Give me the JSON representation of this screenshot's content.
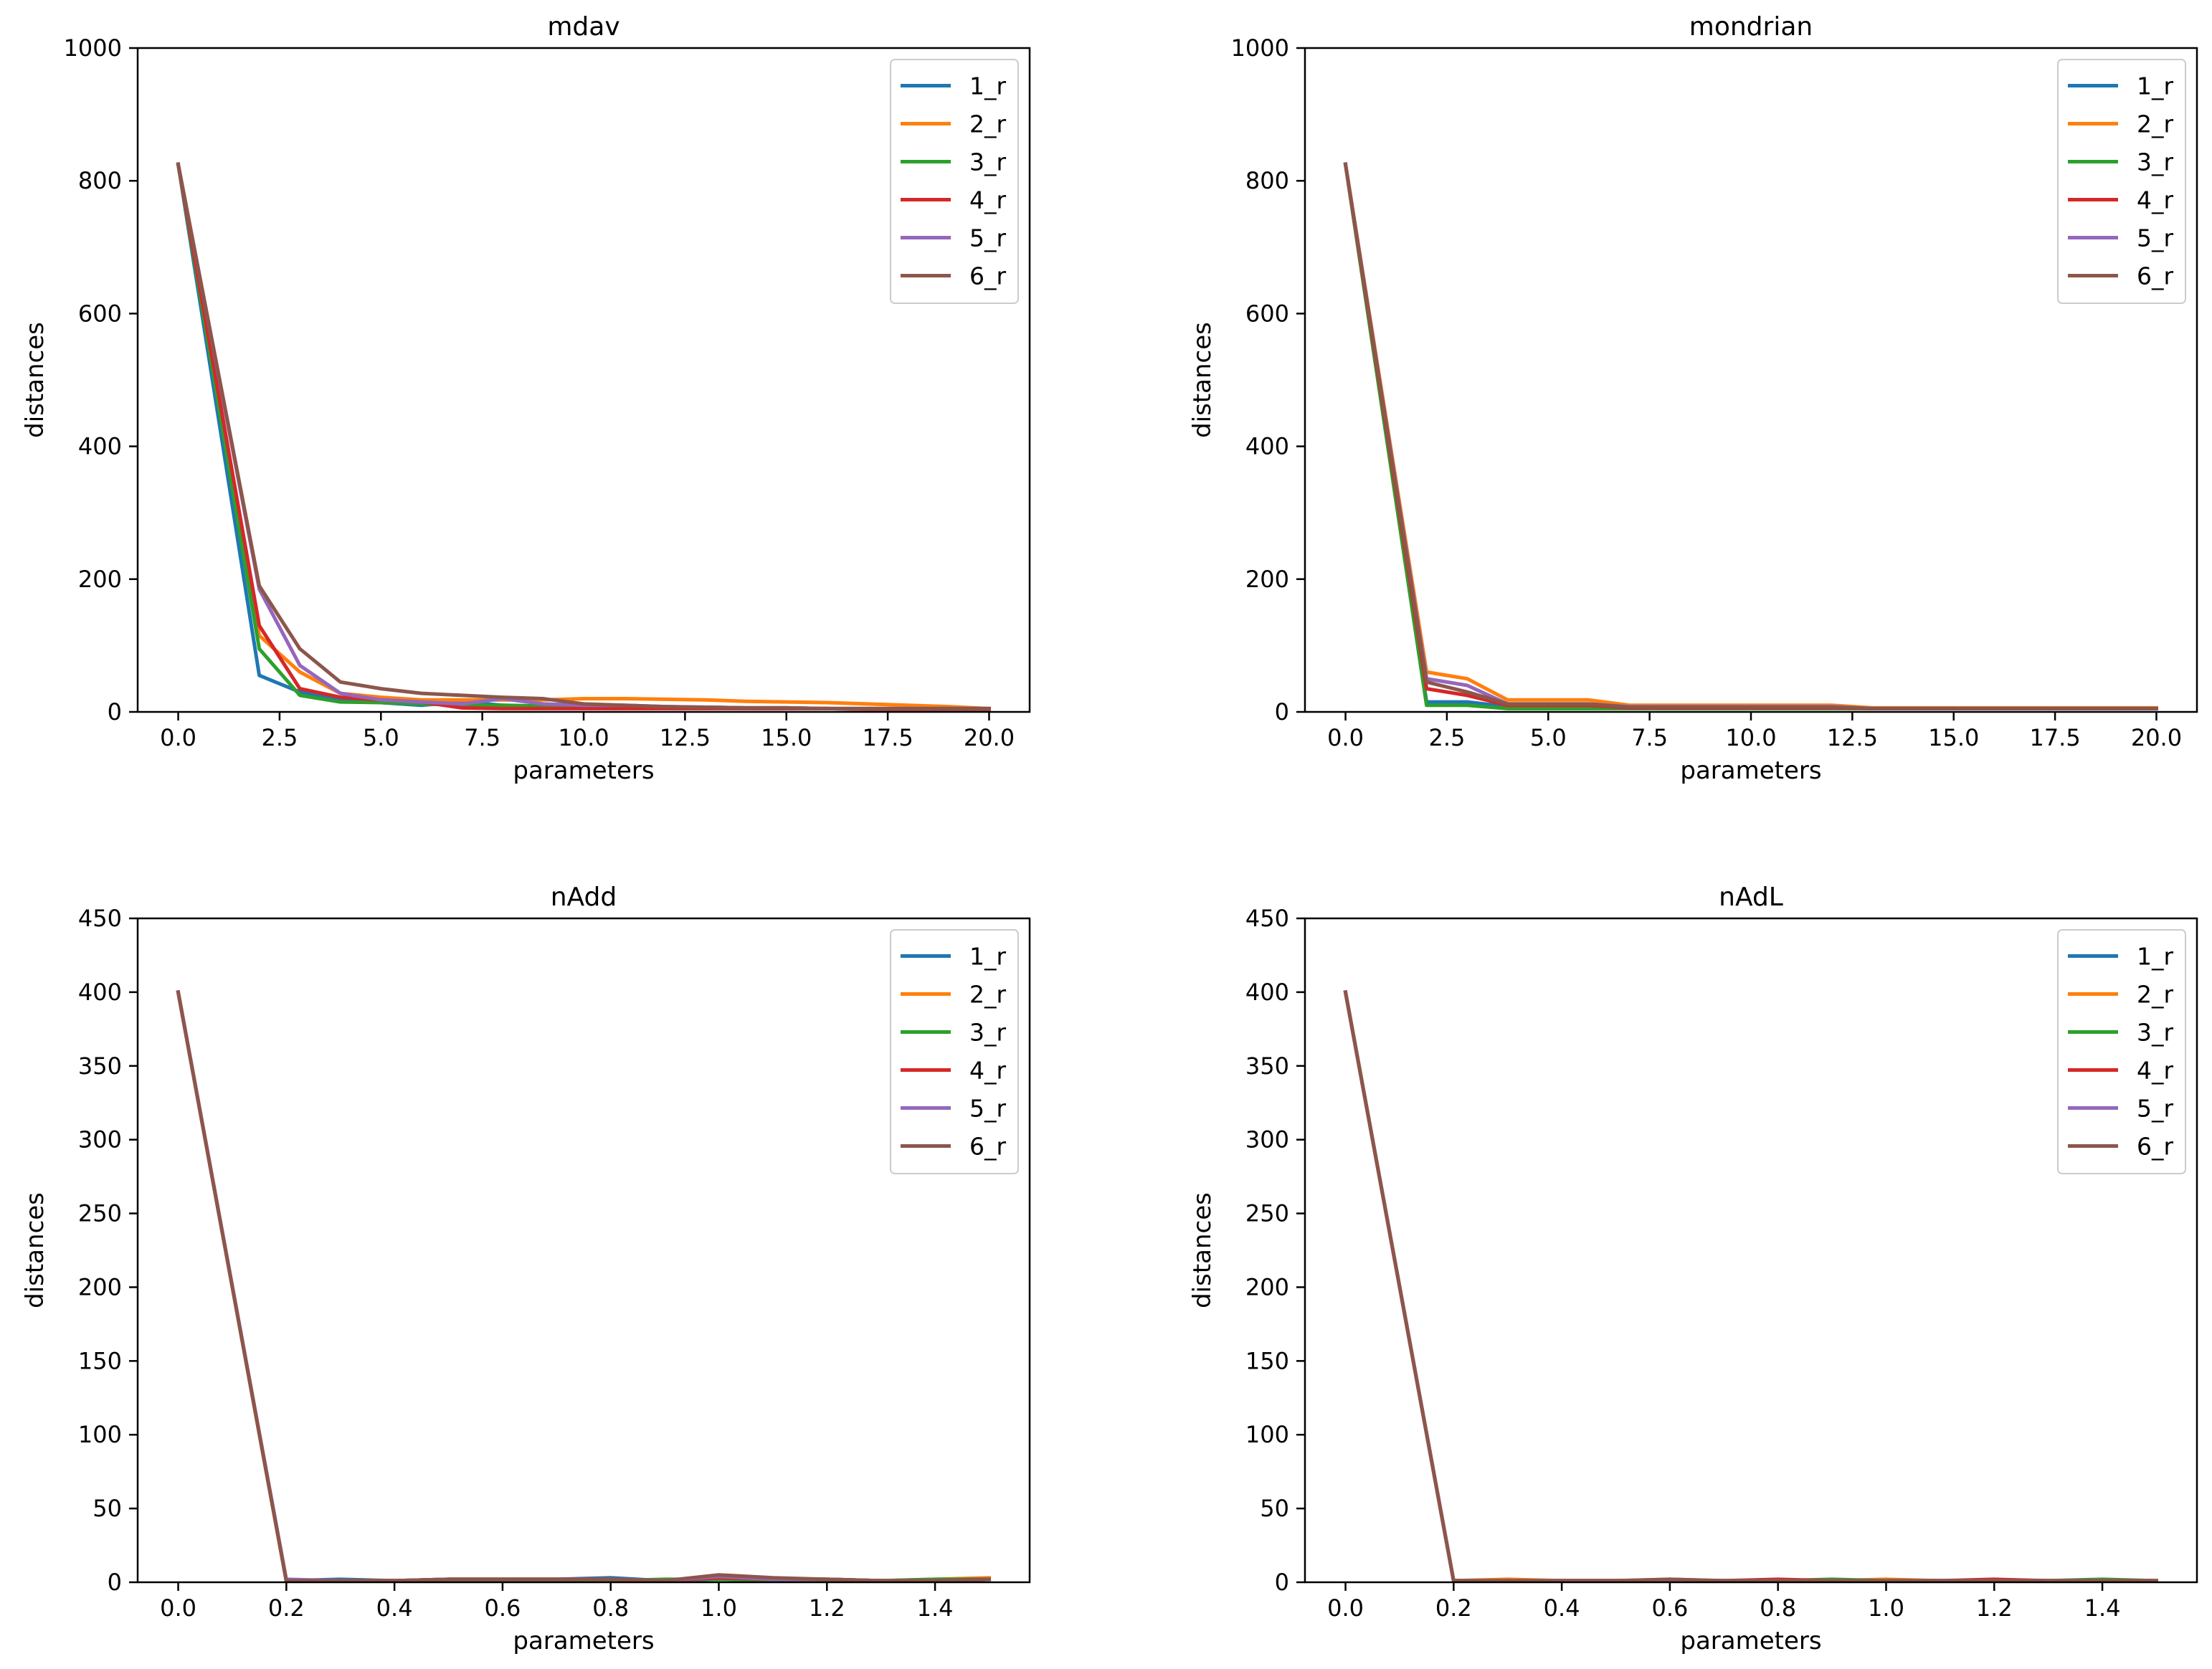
{
  "colors": {
    "1_r": "#1f77b4",
    "2_r": "#ff7f0e",
    "3_r": "#2ca02c",
    "4_r": "#d62728",
    "5_r": "#9467bd",
    "6_r": "#8c564b",
    "axis": "#000000",
    "legend_border": "#cccccc"
  },
  "chart_data": [
    {
      "type": "line",
      "title": "mdav",
      "xlabel": "parameters",
      "ylabel": "distances",
      "xlim": [
        -1.0,
        21.0
      ],
      "ylim": [
        0,
        1000
      ],
      "xticks": [
        0,
        2.5,
        5,
        7.5,
        10,
        12.5,
        15,
        17.5,
        20
      ],
      "xtick_labels": [
        "0.0",
        "2.5",
        "5.0",
        "7.5",
        "10.0",
        "12.5",
        "15.0",
        "17.5",
        "20.0"
      ],
      "yticks": [
        0,
        200,
        400,
        600,
        800,
        1000
      ],
      "ytick_labels": [
        "0",
        "200",
        "400",
        "600",
        "800",
        "1000"
      ],
      "legend_position": "top-right",
      "x": [
        0,
        2,
        3,
        4,
        5,
        6,
        7,
        8,
        9,
        10,
        11,
        12,
        13,
        14,
        15,
        16,
        17,
        18,
        19,
        20
      ],
      "series": [
        {
          "name": "1_r",
          "values": [
            825,
            55,
            30,
            18,
            14,
            10,
            15,
            10,
            8,
            7,
            7,
            6,
            6,
            5,
            5,
            5,
            4,
            4,
            4,
            4
          ]
        },
        {
          "name": "2_r",
          "values": [
            825,
            115,
            60,
            28,
            22,
            18,
            18,
            18,
            18,
            20,
            20,
            19,
            18,
            16,
            15,
            14,
            12,
            10,
            8,
            5
          ]
        },
        {
          "name": "3_r",
          "values": [
            825,
            95,
            25,
            15,
            14,
            12,
            10,
            10,
            9,
            8,
            8,
            7,
            7,
            6,
            6,
            5,
            5,
            5,
            5,
            5
          ]
        },
        {
          "name": "4_r",
          "values": [
            825,
            130,
            35,
            22,
            18,
            15,
            6,
            5,
            5,
            5,
            5,
            5,
            5,
            5,
            5,
            5,
            4,
            4,
            4,
            4
          ]
        },
        {
          "name": "5_r",
          "values": [
            825,
            185,
            70,
            28,
            18,
            15,
            12,
            20,
            12,
            10,
            10,
            8,
            7,
            6,
            6,
            5,
            5,
            5,
            5,
            5
          ]
        },
        {
          "name": "6_r",
          "values": [
            825,
            190,
            95,
            45,
            35,
            28,
            25,
            22,
            20,
            12,
            10,
            8,
            7,
            6,
            6,
            5,
            5,
            5,
            5,
            5
          ]
        }
      ]
    },
    {
      "type": "line",
      "title": "mondrian",
      "xlabel": "parameters",
      "ylabel": "distances",
      "xlim": [
        -1.0,
        21.0
      ],
      "ylim": [
        0,
        1000
      ],
      "xticks": [
        0,
        2.5,
        5,
        7.5,
        10,
        12.5,
        15,
        17.5,
        20
      ],
      "xtick_labels": [
        "0.0",
        "2.5",
        "5.0",
        "7.5",
        "10.0",
        "12.5",
        "15.0",
        "17.5",
        "20.0"
      ],
      "yticks": [
        0,
        200,
        400,
        600,
        800,
        1000
      ],
      "ytick_labels": [
        "0",
        "200",
        "400",
        "600",
        "800",
        "1000"
      ],
      "legend_position": "top-right",
      "x": [
        0,
        2,
        3,
        4,
        5,
        6,
        7,
        8,
        9,
        10,
        11,
        12,
        13,
        14,
        15,
        16,
        17,
        18,
        19,
        20
      ],
      "series": [
        {
          "name": "1_r",
          "values": [
            825,
            15,
            15,
            8,
            8,
            8,
            6,
            6,
            6,
            6,
            6,
            6,
            5,
            5,
            5,
            5,
            5,
            5,
            5,
            5
          ]
        },
        {
          "name": "2_r",
          "values": [
            825,
            60,
            50,
            18,
            18,
            18,
            10,
            10,
            10,
            10,
            10,
            10,
            6,
            6,
            6,
            6,
            6,
            6,
            6,
            6
          ]
        },
        {
          "name": "3_r",
          "values": [
            825,
            10,
            10,
            5,
            5,
            5,
            5,
            5,
            5,
            5,
            5,
            5,
            5,
            5,
            5,
            5,
            5,
            5,
            5,
            5
          ]
        },
        {
          "name": "4_r",
          "values": [
            825,
            35,
            25,
            10,
            10,
            10,
            6,
            6,
            6,
            6,
            6,
            6,
            5,
            5,
            5,
            5,
            5,
            5,
            5,
            5
          ]
        },
        {
          "name": "5_r",
          "values": [
            825,
            50,
            40,
            12,
            12,
            12,
            8,
            8,
            8,
            8,
            8,
            8,
            5,
            5,
            5,
            5,
            5,
            5,
            5,
            5
          ]
        },
        {
          "name": "6_r",
          "values": [
            825,
            45,
            30,
            12,
            12,
            12,
            7,
            7,
            7,
            7,
            7,
            7,
            5,
            5,
            5,
            5,
            5,
            5,
            5,
            5
          ]
        }
      ]
    },
    {
      "type": "line",
      "title": "nAdd",
      "xlabel": "parameters",
      "ylabel": "distances",
      "xlim": [
        -0.075,
        1.575
      ],
      "ylim": [
        0,
        450
      ],
      "xticks": [
        0,
        0.2,
        0.4,
        0.6,
        0.8,
        1.0,
        1.2,
        1.4
      ],
      "xtick_labels": [
        "0.0",
        "0.2",
        "0.4",
        "0.6",
        "0.8",
        "1.0",
        "1.2",
        "1.4"
      ],
      "yticks": [
        0,
        50,
        100,
        150,
        200,
        250,
        300,
        350,
        400,
        450
      ],
      "ytick_labels": [
        "0",
        "50",
        "100",
        "150",
        "200",
        "250",
        "300",
        "350",
        "400",
        "450"
      ],
      "legend_position": "top-right",
      "x": [
        0,
        0.2,
        0.3,
        0.4,
        0.5,
        0.6,
        0.7,
        0.8,
        0.9,
        1.0,
        1.1,
        1.2,
        1.3,
        1.4,
        1.5
      ],
      "series": [
        {
          "name": "1_r",
          "values": [
            400,
            1,
            2,
            1,
            2,
            2,
            2,
            3,
            1,
            2,
            2,
            2,
            1,
            1,
            2
          ]
        },
        {
          "name": "2_r",
          "values": [
            400,
            1,
            1,
            1,
            2,
            2,
            2,
            2,
            1,
            3,
            2,
            2,
            1,
            2,
            3
          ]
        },
        {
          "name": "3_r",
          "values": [
            400,
            1,
            1,
            1,
            1,
            1,
            1,
            1,
            2,
            2,
            1,
            1,
            1,
            2,
            2
          ]
        },
        {
          "name": "4_r",
          "values": [
            400,
            1,
            1,
            1,
            2,
            2,
            2,
            2,
            1,
            3,
            2,
            2,
            1,
            1,
            2
          ]
        },
        {
          "name": "5_r",
          "values": [
            400,
            2,
            1,
            1,
            2,
            2,
            2,
            2,
            1,
            4,
            2,
            2,
            1,
            1,
            2
          ]
        },
        {
          "name": "6_r",
          "values": [
            400,
            1,
            1,
            1,
            2,
            2,
            2,
            2,
            1,
            5,
            3,
            2,
            1,
            1,
            2
          ]
        }
      ]
    },
    {
      "type": "line",
      "title": "nAdL",
      "xlabel": "parameters",
      "ylabel": "distances",
      "xlim": [
        -0.075,
        1.575
      ],
      "ylim": [
        0,
        450
      ],
      "xticks": [
        0,
        0.2,
        0.4,
        0.6,
        0.8,
        1.0,
        1.2,
        1.4
      ],
      "xtick_labels": [
        "0.0",
        "0.2",
        "0.4",
        "0.6",
        "0.8",
        "1.0",
        "1.2",
        "1.4"
      ],
      "yticks": [
        0,
        50,
        100,
        150,
        200,
        250,
        300,
        350,
        400,
        450
      ],
      "ytick_labels": [
        "0",
        "50",
        "100",
        "150",
        "200",
        "250",
        "300",
        "350",
        "400",
        "450"
      ],
      "legend_position": "top-right",
      "x": [
        0,
        0.2,
        0.3,
        0.4,
        0.5,
        0.6,
        0.7,
        0.8,
        0.9,
        1.0,
        1.1,
        1.2,
        1.3,
        1.4,
        1.5
      ],
      "series": [
        {
          "name": "1_r",
          "values": [
            400,
            1,
            1,
            1,
            1,
            1,
            1,
            1,
            1,
            1,
            1,
            1,
            1,
            1,
            1
          ]
        },
        {
          "name": "2_r",
          "values": [
            400,
            1,
            2,
            1,
            1,
            2,
            1,
            1,
            1,
            2,
            1,
            1,
            1,
            1,
            1
          ]
        },
        {
          "name": "3_r",
          "values": [
            400,
            1,
            1,
            1,
            1,
            1,
            1,
            1,
            2,
            1,
            1,
            1,
            1,
            2,
            1
          ]
        },
        {
          "name": "4_r",
          "values": [
            400,
            1,
            1,
            1,
            1,
            1,
            1,
            2,
            1,
            1,
            1,
            2,
            1,
            1,
            1
          ]
        },
        {
          "name": "5_r",
          "values": [
            400,
            1,
            1,
            1,
            1,
            1,
            1,
            1,
            1,
            1,
            1,
            1,
            1,
            1,
            1
          ]
        },
        {
          "name": "6_r",
          "values": [
            400,
            1,
            1,
            1,
            1,
            2,
            1,
            1,
            1,
            1,
            1,
            1,
            1,
            1,
            1
          ]
        }
      ]
    }
  ]
}
